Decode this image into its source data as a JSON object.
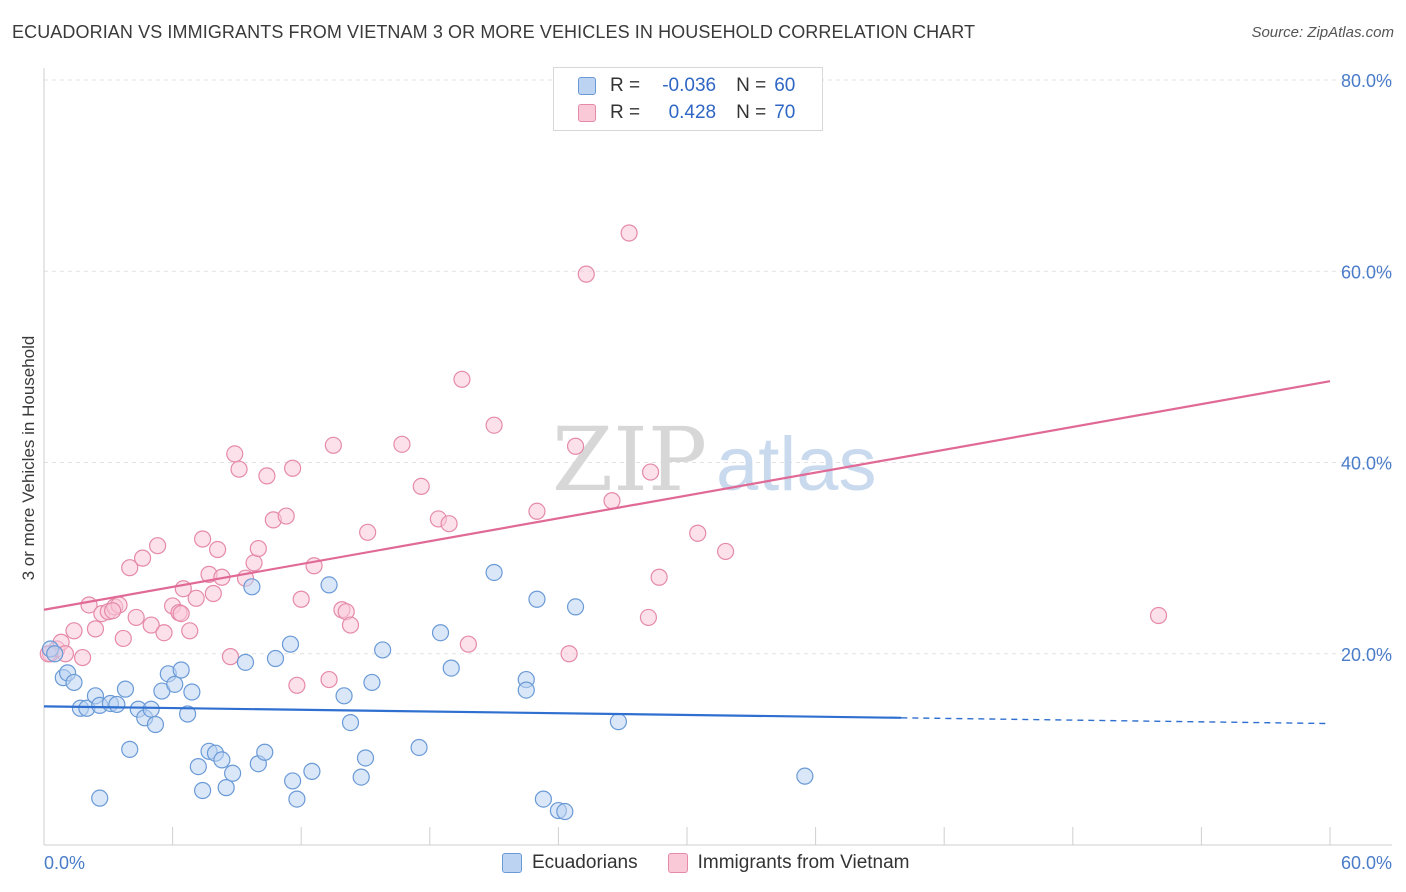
{
  "title": "ECUADORIAN VS IMMIGRANTS FROM VIETNAM 3 OR MORE VEHICLES IN HOUSEHOLD CORRELATION CHART",
  "source": "Source: ZipAtlas.com",
  "watermark": {
    "zip": "ZIP",
    "atlas": "atlas"
  },
  "legend": {
    "rows": [
      {
        "r_label": "R =",
        "r_value": "-0.036",
        "n_label": "N =",
        "n_value": "60"
      },
      {
        "r_label": "R =",
        "r_value": "0.428",
        "n_label": "N =",
        "n_value": "70"
      }
    ]
  },
  "bottom_legend": {
    "series1": "Ecuadorians",
    "series2": "Immigrants from Vietnam"
  },
  "colors": {
    "blue_fill": "#bcd3f2",
    "blue_stroke": "#6a9ad6",
    "blue_line": "#2f6fd0",
    "pink_fill": "#f9c9d8",
    "pink_stroke": "#e58aa8",
    "pink_line": "#e06a95",
    "tick": "#4a7cc9",
    "grid": "#e2e2e2"
  },
  "chart_data": {
    "type": "scatter",
    "title": "ECUADORIAN VS IMMIGRANTS FROM VIETNAM 3 OR MORE VEHICLES IN HOUSEHOLD CORRELATION CHART",
    "xlabel": "",
    "ylabel": "3 or more Vehicles in Household",
    "xlim": [
      0,
      60
    ],
    "ylim": [
      0,
      80
    ],
    "x_tick_labels": [
      "0.0%",
      "60.0%"
    ],
    "y_tick_labels": [
      "20.0%",
      "40.0%",
      "60.0%",
      "80.0%"
    ],
    "y_ticks": [
      20,
      40,
      60,
      80
    ],
    "grid": true,
    "legend_position": "top-center",
    "series": [
      {
        "name": "Ecuadorians",
        "R": -0.036,
        "N": 60,
        "trend": {
          "x0": 0,
          "y0": 14.5,
          "x1": 40,
          "y1": 13.3,
          "dashed_to_x": 60,
          "dashed_to_y": 12.7
        },
        "points": [
          [
            0.3,
            20.5
          ],
          [
            0.5,
            20.0
          ],
          [
            0.9,
            17.5
          ],
          [
            1.1,
            18.0
          ],
          [
            1.4,
            17.0
          ],
          [
            1.7,
            14.3
          ],
          [
            2.0,
            14.3
          ],
          [
            2.4,
            15.6
          ],
          [
            2.6,
            14.6
          ],
          [
            3.1,
            14.8
          ],
          [
            3.4,
            14.7
          ],
          [
            3.8,
            16.3
          ],
          [
            4.0,
            10.0
          ],
          [
            4.4,
            14.2
          ],
          [
            4.7,
            13.3
          ],
          [
            5.0,
            14.2
          ],
          [
            5.2,
            12.6
          ],
          [
            5.5,
            16.1
          ],
          [
            5.8,
            17.9
          ],
          [
            6.1,
            16.8
          ],
          [
            6.4,
            18.3
          ],
          [
            6.7,
            13.7
          ],
          [
            6.9,
            16.0
          ],
          [
            7.2,
            8.2
          ],
          [
            7.4,
            5.7
          ],
          [
            7.7,
            9.8
          ],
          [
            8.0,
            9.6
          ],
          [
            8.3,
            8.9
          ],
          [
            8.5,
            6.0
          ],
          [
            8.8,
            7.5
          ],
          [
            9.4,
            19.1
          ],
          [
            9.7,
            27.0
          ],
          [
            10.0,
            8.5
          ],
          [
            10.3,
            9.7
          ],
          [
            10.8,
            19.5
          ],
          [
            11.5,
            21.0
          ],
          [
            11.6,
            6.7
          ],
          [
            11.8,
            4.8
          ],
          [
            12.5,
            7.7
          ],
          [
            13.3,
            27.2
          ],
          [
            14.0,
            15.6
          ],
          [
            14.3,
            12.8
          ],
          [
            14.8,
            7.1
          ],
          [
            15.0,
            9.1
          ],
          [
            15.3,
            17.0
          ],
          [
            15.8,
            20.4
          ],
          [
            17.5,
            10.2
          ],
          [
            18.5,
            22.2
          ],
          [
            19.0,
            18.5
          ],
          [
            21.0,
            28.5
          ],
          [
            22.5,
            17.3
          ],
          [
            22.5,
            16.2
          ],
          [
            23.0,
            25.7
          ],
          [
            23.3,
            4.8
          ],
          [
            24.0,
            3.6
          ],
          [
            24.3,
            3.5
          ],
          [
            24.8,
            24.9
          ],
          [
            26.8,
            12.9
          ],
          [
            35.5,
            7.2
          ],
          [
            2.6,
            4.9
          ]
        ]
      },
      {
        "name": "Immigrants from Vietnam",
        "R": 0.428,
        "N": 70,
        "trend": {
          "x0": 0,
          "y0": 24.6,
          "x1": 60,
          "y1": 48.5
        },
        "points": [
          [
            0.3,
            20.0
          ],
          [
            0.6,
            20.5
          ],
          [
            0.8,
            21.2
          ],
          [
            1.0,
            20.0
          ],
          [
            1.4,
            22.4
          ],
          [
            1.8,
            19.6
          ],
          [
            2.1,
            25.1
          ],
          [
            2.4,
            22.6
          ],
          [
            2.7,
            24.2
          ],
          [
            3.0,
            24.4
          ],
          [
            3.3,
            24.9
          ],
          [
            3.5,
            25.1
          ],
          [
            3.7,
            21.6
          ],
          [
            4.0,
            29.0
          ],
          [
            4.3,
            23.8
          ],
          [
            4.6,
            30.0
          ],
          [
            5.0,
            23.0
          ],
          [
            5.3,
            31.3
          ],
          [
            5.6,
            22.2
          ],
          [
            6.0,
            25.0
          ],
          [
            6.3,
            24.3
          ],
          [
            6.5,
            26.8
          ],
          [
            6.8,
            22.4
          ],
          [
            7.1,
            25.8
          ],
          [
            7.4,
            32.0
          ],
          [
            7.7,
            28.3
          ],
          [
            7.9,
            26.3
          ],
          [
            8.1,
            30.9
          ],
          [
            8.3,
            28.0
          ],
          [
            8.7,
            19.7
          ],
          [
            8.9,
            40.9
          ],
          [
            9.1,
            39.3
          ],
          [
            9.4,
            27.9
          ],
          [
            9.8,
            29.5
          ],
          [
            10.0,
            31.0
          ],
          [
            10.4,
            38.6
          ],
          [
            10.7,
            34.0
          ],
          [
            11.3,
            34.4
          ],
          [
            11.6,
            39.4
          ],
          [
            11.8,
            16.7
          ],
          [
            12.0,
            25.7
          ],
          [
            12.6,
            29.2
          ],
          [
            13.3,
            17.3
          ],
          [
            13.5,
            41.8
          ],
          [
            13.9,
            24.6
          ],
          [
            14.1,
            24.4
          ],
          [
            14.3,
            23.0
          ],
          [
            15.1,
            32.7
          ],
          [
            16.7,
            41.9
          ],
          [
            17.6,
            37.5
          ],
          [
            18.4,
            34.1
          ],
          [
            18.9,
            33.6
          ],
          [
            19.5,
            48.7
          ],
          [
            19.8,
            21.0
          ],
          [
            21.0,
            43.9
          ],
          [
            23.0,
            34.9
          ],
          [
            24.5,
            20.0
          ],
          [
            24.8,
            41.7
          ],
          [
            25.3,
            59.7
          ],
          [
            26.5,
            36.0
          ],
          [
            27.3,
            64.0
          ],
          [
            28.2,
            23.8
          ],
          [
            28.3,
            39.0
          ],
          [
            28.7,
            28.0
          ],
          [
            30.5,
            32.6
          ],
          [
            31.8,
            30.7
          ],
          [
            52.0,
            24.0
          ],
          [
            0.2,
            20.0
          ],
          [
            3.2,
            24.5
          ],
          [
            6.4,
            24.2
          ]
        ]
      }
    ]
  }
}
